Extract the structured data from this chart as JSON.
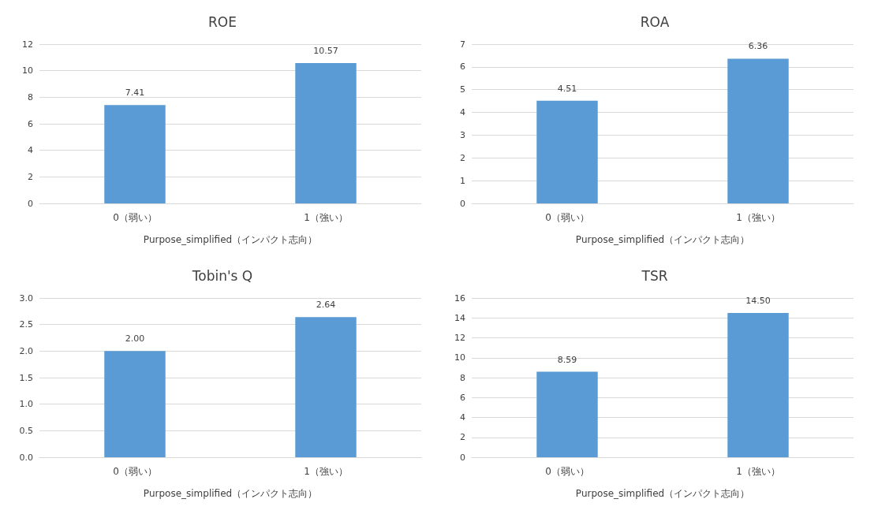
{
  "chart_data": [
    {
      "type": "bar",
      "title": "ROE",
      "xlabel": "Purpose_simplified（インパクト志向）",
      "categories": [
        "0（弱い）",
        "1（強い）"
      ],
      "values": [
        7.41,
        10.57
      ],
      "value_labels": [
        "7.41",
        "10.57"
      ],
      "color": "#5b9bd5",
      "ylim": [
        0,
        12
      ],
      "yticks": [
        0,
        2,
        4,
        6,
        8,
        10,
        12
      ],
      "grid": "y"
    },
    {
      "type": "bar",
      "title": "ROA",
      "xlabel": "Purpose_simplified（インパクト志向）",
      "categories": [
        "0（弱い）",
        "1（強い）"
      ],
      "values": [
        4.51,
        6.36
      ],
      "value_labels": [
        "4.51",
        "6.36"
      ],
      "color": "#5b9bd5",
      "ylim": [
        0,
        7
      ],
      "yticks": [
        0,
        1,
        2,
        3,
        4,
        5,
        6,
        7
      ],
      "grid": "y"
    },
    {
      "type": "bar",
      "title": "Tobin's Q",
      "xlabel": "Purpose_simplified（インパクト志向）",
      "categories": [
        "0（弱い）",
        "1（強い）"
      ],
      "values": [
        2.0,
        2.64
      ],
      "value_labels": [
        "2.00",
        "2.64"
      ],
      "color": "#5b9bd5",
      "ylim": [
        0,
        3
      ],
      "yticks": [
        {
          "value": 0,
          "label": "0.0"
        },
        {
          "value": 0.5,
          "label": "0.5"
        },
        {
          "value": 1,
          "label": "1.0"
        },
        {
          "value": 1.5,
          "label": "1.5"
        },
        {
          "value": 2,
          "label": "2.0"
        },
        {
          "value": 2.5,
          "label": "2.5"
        },
        {
          "value": 3,
          "label": "3.0"
        }
      ],
      "grid": "y"
    },
    {
      "type": "bar",
      "title": "TSR",
      "xlabel": "Purpose_simplified（インパクト志向）",
      "categories": [
        "0（弱い）",
        "1（強い）"
      ],
      "values": [
        8.59,
        14.5
      ],
      "value_labels": [
        "8.59",
        "14.50"
      ],
      "color": "#5b9bd5",
      "ylim": [
        0,
        16
      ],
      "yticks": [
        0,
        2,
        4,
        6,
        8,
        10,
        12,
        14,
        16
      ],
      "grid": "y"
    }
  ]
}
